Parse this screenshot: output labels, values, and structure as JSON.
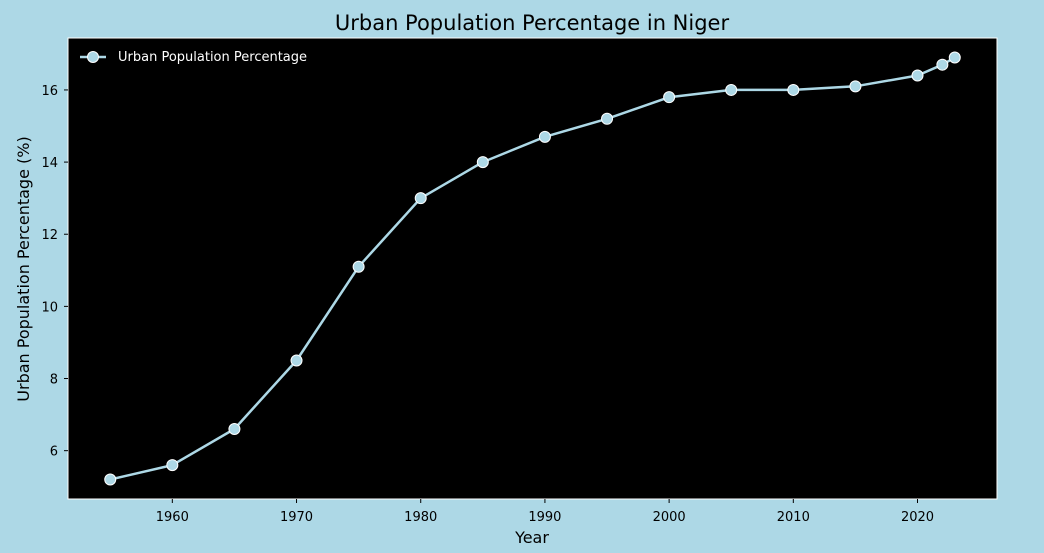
{
  "chart_data": {
    "type": "line",
    "title": "Urban Population Percentage in Niger",
    "xlabel": "Year",
    "ylabel": "Urban Population Percentage (%)",
    "xlim": [
      1951.6,
      2026.4
    ],
    "ylim": [
      4.66,
      17.44
    ],
    "xticks": [
      1960,
      1970,
      1980,
      1990,
      2000,
      2010,
      2020
    ],
    "yticks": [
      6,
      8,
      10,
      12,
      14,
      16
    ],
    "grid": false,
    "legend_position": "top-left",
    "series": [
      {
        "name": "Urban Population Percentage",
        "color": "#add8e6",
        "marker": "circle",
        "x": [
          1955,
          1960,
          1965,
          1970,
          1975,
          1980,
          1985,
          1990,
          1995,
          2000,
          2005,
          2010,
          2015,
          2020,
          2022,
          2023
        ],
        "y": [
          5.2,
          5.6,
          6.6,
          8.5,
          11.1,
          13.0,
          14.0,
          14.7,
          15.2,
          15.8,
          16.0,
          16.0,
          16.1,
          16.4,
          16.7,
          16.9
        ]
      }
    ],
    "colors": {
      "figure_background": "#add8e6",
      "plot_background": "#000000",
      "legend_text": "#ffffff"
    }
  }
}
